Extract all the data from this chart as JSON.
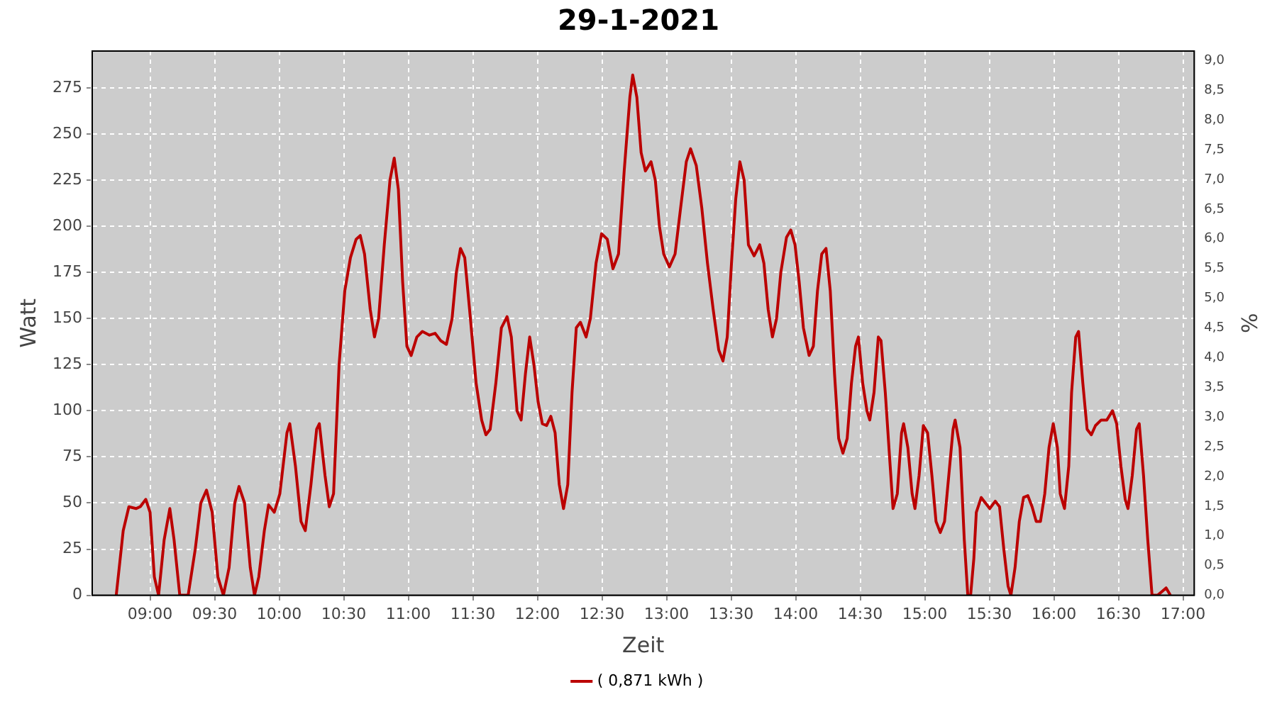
{
  "chart_data": {
    "type": "line",
    "title": "29-1-2021",
    "xlabel": "Zeit",
    "ylabel": "Watt",
    "y2label": "%",
    "xlim": [
      8.552,
      17.087
    ],
    "xticks": [
      {
        "value": 9,
        "label": "09:00"
      },
      {
        "value": 9.5,
        "label": "09:30"
      },
      {
        "value": 10,
        "label": "10:00"
      },
      {
        "value": 10.5,
        "label": "10:30"
      },
      {
        "value": 11,
        "label": "11:00"
      },
      {
        "value": 11.5,
        "label": "11:30"
      },
      {
        "value": 12,
        "label": "12:00"
      },
      {
        "value": 12.5,
        "label": "12:30"
      },
      {
        "value": 13,
        "label": "13:00"
      },
      {
        "value": 13.5,
        "label": "13:30"
      },
      {
        "value": 14,
        "label": "14:00"
      },
      {
        "value": 14.5,
        "label": "14:30"
      },
      {
        "value": 15,
        "label": "15:00"
      },
      {
        "value": 15.5,
        "label": "15:30"
      },
      {
        "value": 16,
        "label": "16:00"
      },
      {
        "value": 16.5,
        "label": "16:30"
      },
      {
        "value": 17,
        "label": "17:00"
      }
    ],
    "ylim": [
      0,
      295
    ],
    "yticks": [
      0,
      25,
      50,
      75,
      100,
      125,
      150,
      175,
      200,
      225,
      250,
      275
    ],
    "y2lim": [
      0,
      9.16
    ],
    "y2ticks": [
      {
        "value": 0,
        "label": "0,0"
      },
      {
        "value": 0.5,
        "label": "0,5"
      },
      {
        "value": 1,
        "label": "1,0"
      },
      {
        "value": 1.5,
        "label": "1,5"
      },
      {
        "value": 2,
        "label": "2,0"
      },
      {
        "value": 2.5,
        "label": "2,5"
      },
      {
        "value": 3,
        "label": "3,0"
      },
      {
        "value": 3.5,
        "label": "3,5"
      },
      {
        "value": 4,
        "label": "4,0"
      },
      {
        "value": 4.5,
        "label": "4,5"
      },
      {
        "value": 5,
        "label": "5,0"
      },
      {
        "value": 5.5,
        "label": "5,5"
      },
      {
        "value": 6,
        "label": "6,0"
      },
      {
        "value": 6.5,
        "label": "6,5"
      },
      {
        "value": 7,
        "label": "7,0"
      },
      {
        "value": 7.5,
        "label": "7,5"
      },
      {
        "value": 8,
        "label": "8,0"
      },
      {
        "value": 8.5,
        "label": "8,5"
      },
      {
        "value": 9,
        "label": "9,0"
      }
    ],
    "grid": true,
    "legend": "bottom",
    "marker": "none",
    "line_style": "solid",
    "series": [
      {
        "name": "( 0,871 kWh )",
        "color": "#bb0000",
        "x": [
          8.738,
          8.792,
          8.836,
          8.891,
          8.924,
          8.967,
          9.0,
          9.033,
          9.066,
          9.109,
          9.153,
          9.186,
          9.23,
          9.295,
          9.35,
          9.393,
          9.437,
          9.481,
          9.525,
          9.568,
          9.612,
          9.656,
          9.689,
          9.732,
          9.776,
          9.809,
          9.842,
          9.885,
          9.918,
          9.962,
          10.005,
          10.06,
          10.082,
          10.126,
          10.169,
          10.202,
          10.246,
          10.29,
          10.311,
          10.355,
          10.388,
          10.421,
          10.464,
          10.508,
          10.552,
          10.596,
          10.628,
          10.661,
          10.705,
          10.738,
          10.77,
          10.814,
          10.858,
          10.891,
          10.923,
          10.956,
          10.989,
          11.022,
          11.066,
          11.109,
          11.164,
          11.208,
          11.251,
          11.295,
          11.339,
          11.372,
          11.404,
          11.437,
          11.481,
          11.525,
          11.568,
          11.601,
          11.634,
          11.678,
          11.721,
          11.765,
          11.798,
          11.842,
          11.874,
          11.907,
          11.94,
          11.973,
          12.005,
          12.038,
          12.071,
          12.104,
          12.137,
          12.169,
          12.202,
          12.235,
          12.268,
          12.301,
          12.333,
          12.377,
          12.41,
          12.454,
          12.497,
          12.541,
          12.585,
          12.628,
          12.672,
          12.716,
          12.738,
          12.77,
          12.803,
          12.836,
          12.88,
          12.913,
          12.945,
          12.978,
          13.022,
          13.066,
          13.109,
          13.153,
          13.186,
          13.23,
          13.273,
          13.317,
          13.361,
          13.404,
          13.437,
          13.47,
          13.503,
          13.536,
          13.568,
          13.601,
          13.634,
          13.678,
          13.722,
          13.754,
          13.787,
          13.82,
          13.852,
          13.885,
          13.929,
          13.962,
          13.995,
          14.027,
          14.06,
          14.104,
          14.137,
          14.169,
          14.202,
          14.235,
          14.268,
          14.301,
          14.333,
          14.366,
          14.399,
          14.432,
          14.464,
          14.486,
          14.519,
          14.552,
          14.574,
          14.607,
          14.64,
          14.661,
          14.694,
          14.732,
          14.754,
          14.787,
          14.82,
          14.836,
          14.869,
          14.902,
          14.924,
          14.956,
          14.989,
          15.022,
          15.055,
          15.087,
          15.12,
          15.153,
          15.186,
          15.219,
          15.235,
          15.273,
          15.306,
          15.333,
          15.355,
          15.38,
          15.399,
          15.437,
          15.47,
          15.503,
          15.546,
          15.579,
          15.612,
          15.645,
          15.667,
          15.699,
          15.732,
          15.765,
          15.798,
          15.831,
          15.863,
          15.896,
          15.929,
          15.962,
          15.995,
          16.027,
          16.049,
          16.082,
          16.115,
          16.137,
          16.169,
          16.191,
          16.224,
          16.257,
          16.29,
          16.322,
          16.366,
          16.41,
          16.454,
          16.486,
          16.519,
          16.552,
          16.574,
          16.607,
          16.64,
          16.661,
          16.694,
          16.727,
          16.76,
          16.803,
          16.836,
          16.869,
          16.902
        ],
        "values": [
          0,
          35,
          48,
          47,
          48,
          52,
          45,
          10,
          0,
          30,
          47,
          30,
          0,
          0,
          25,
          50,
          57,
          45,
          10,
          0,
          15,
          50,
          59,
          50,
          15,
          0,
          10,
          35,
          49,
          45,
          55,
          88,
          93,
          70,
          40,
          35,
          60,
          90,
          93,
          65,
          48,
          55,
          125,
          165,
          183,
          193,
          195,
          185,
          155,
          140,
          150,
          190,
          225,
          237,
          220,
          170,
          135,
          130,
          140,
          143,
          141,
          142,
          138,
          136,
          150,
          175,
          188,
          183,
          150,
          115,
          95,
          87,
          90,
          115,
          145,
          151,
          140,
          100,
          95,
          120,
          140,
          125,
          105,
          93,
          92,
          97,
          88,
          60,
          47,
          60,
          110,
          145,
          148,
          140,
          150,
          180,
          196,
          193,
          177,
          185,
          230,
          270,
          282,
          270,
          240,
          230,
          235,
          225,
          200,
          185,
          178,
          185,
          210,
          235,
          242,
          233,
          210,
          180,
          155,
          133,
          127,
          140,
          180,
          215,
          235,
          225,
          190,
          184,
          190,
          180,
          155,
          140,
          150,
          175,
          194,
          198,
          190,
          170,
          145,
          130,
          135,
          165,
          185,
          188,
          165,
          120,
          85,
          77,
          85,
          115,
          135,
          140,
          115,
          100,
          95,
          110,
          140,
          138,
          110,
          70,
          47,
          55,
          88,
          93,
          80,
          55,
          47,
          65,
          92,
          88,
          65,
          40,
          34,
          40,
          65,
          90,
          95,
          80,
          30,
          0,
          0,
          20,
          45,
          53,
          50,
          47,
          51,
          48,
          25,
          5,
          0,
          15,
          40,
          53,
          54,
          48,
          40,
          40,
          55,
          80,
          93,
          80,
          55,
          47,
          70,
          110,
          140,
          143,
          115,
          90,
          87,
          92,
          95,
          95,
          100,
          93,
          70,
          52,
          47,
          65,
          90,
          93,
          65,
          30,
          0,
          0,
          2,
          4,
          0
        ]
      }
    ]
  }
}
